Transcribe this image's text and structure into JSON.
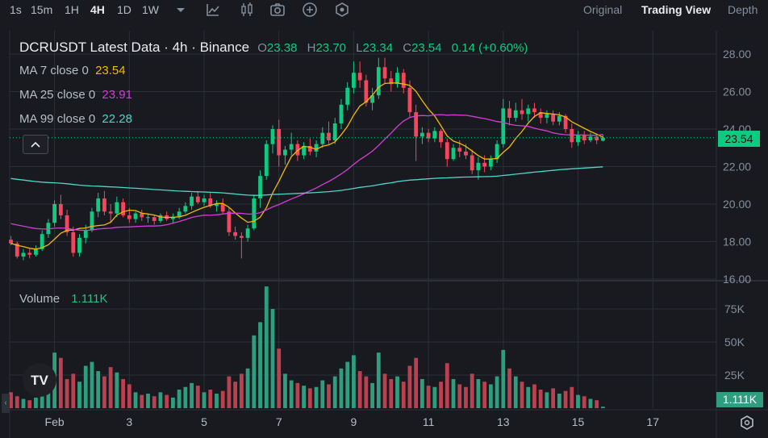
{
  "toolbar": {
    "timeframes": [
      "1s",
      "15m",
      "1H",
      "4H",
      "1D",
      "1W"
    ],
    "active_timeframe": "4H",
    "views": [
      "Original",
      "Trading View",
      "Depth"
    ],
    "active_view": "Trading View"
  },
  "legend": {
    "symbol": "DCRUSDT Latest Data · 4h · Binance",
    "open_label": "O",
    "open": "23.38",
    "high_label": "H",
    "high": "23.70",
    "low_label": "L",
    "low": "23.34",
    "close_label": "C",
    "close": "23.54",
    "change": "0.14 (+0.60%)",
    "ma7_label": "MA 7 close 0",
    "ma7_value": "23.54",
    "ma25_label": "MA 25 close 0",
    "ma25_value": "23.91",
    "ma99_label": "MA 99 close 0",
    "ma99_value": "22.28",
    "volume_label": "Volume",
    "volume_value": "1.111K"
  },
  "badges": {
    "last_price": "23.54",
    "last_volume": "1.111K"
  },
  "colors": {
    "up": "#0ecb81",
    "down": "#f6465d",
    "ma7": "#f0b90b",
    "ma25": "#d23fd2",
    "ma99": "#50d6c8",
    "vol_up": "#2f9e7e",
    "vol_down": "#b94150"
  },
  "chart_data": {
    "type": "candlestick",
    "symbol": "DCRUSDT",
    "interval": "4h",
    "exchange": "Binance",
    "price_axis": {
      "ticks": [
        "28.00",
        "26.00",
        "24.00",
        "22.00",
        "20.00",
        "18.00",
        "16.00"
      ],
      "range": [
        16,
        29
      ]
    },
    "volume_axis": {
      "ticks": [
        "75K",
        "50K",
        "25K"
      ],
      "range": [
        0,
        100000
      ]
    },
    "time_axis": {
      "ticks": [
        {
          "label": "Feb",
          "day": 1
        },
        {
          "label": "3",
          "day": 3
        },
        {
          "label": "5",
          "day": 5
        },
        {
          "label": "7",
          "day": 7
        },
        {
          "label": "9",
          "day": 9
        },
        {
          "label": "11",
          "day": 11
        },
        {
          "label": "13",
          "day": 13
        },
        {
          "label": "15",
          "day": 15
        },
        {
          "label": "17",
          "day": 17
        }
      ],
      "start_day": -0.2,
      "end_day": 18.7
    },
    "last_price": 23.54,
    "candles_start_day": -0.1667,
    "candles_interval_days": 0.16667,
    "candles_note_fields": [
      "o",
      "h",
      "l",
      "c",
      "v"
    ],
    "candles": [
      [
        18.1,
        18.3,
        17.8,
        17.9,
        12000
      ],
      [
        17.9,
        18.0,
        17.1,
        17.2,
        9000
      ],
      [
        17.2,
        17.6,
        17.0,
        17.4,
        7000
      ],
      [
        17.4,
        17.6,
        17.1,
        17.3,
        6000
      ],
      [
        17.3,
        17.8,
        17.2,
        17.6,
        8000
      ],
      [
        17.6,
        18.6,
        17.5,
        18.4,
        15000
      ],
      [
        18.4,
        19.2,
        18.2,
        19.0,
        30000
      ],
      [
        19.0,
        20.2,
        18.8,
        20.0,
        42000
      ],
      [
        20.0,
        20.5,
        19.2,
        19.4,
        38000
      ],
      [
        19.4,
        19.7,
        18.3,
        18.5,
        22000
      ],
      [
        18.5,
        18.8,
        17.2,
        17.4,
        26000
      ],
      [
        17.4,
        18.4,
        17.2,
        18.2,
        20000
      ],
      [
        18.2,
        18.9,
        17.9,
        18.6,
        32000
      ],
      [
        18.6,
        19.8,
        18.5,
        19.6,
        35000
      ],
      [
        19.6,
        20.6,
        19.3,
        20.3,
        28000
      ],
      [
        20.3,
        20.7,
        19.4,
        19.6,
        24000
      ],
      [
        19.6,
        20.0,
        19.0,
        19.5,
        31000
      ],
      [
        19.5,
        20.4,
        19.3,
        20.1,
        27000
      ],
      [
        20.1,
        20.3,
        19.3,
        19.4,
        22000
      ],
      [
        19.4,
        19.8,
        19.0,
        19.2,
        18000
      ],
      [
        19.2,
        19.6,
        19.0,
        19.5,
        12000
      ],
      [
        19.5,
        19.7,
        19.1,
        19.3,
        10000
      ],
      [
        19.3,
        19.5,
        19.0,
        19.3,
        11000
      ],
      [
        19.3,
        19.4,
        18.9,
        19.1,
        9000
      ],
      [
        19.1,
        19.5,
        19.0,
        19.4,
        12000
      ],
      [
        19.4,
        19.6,
        19.1,
        19.2,
        10000
      ],
      [
        19.2,
        19.5,
        19.0,
        19.3,
        8000
      ],
      [
        19.3,
        19.8,
        19.2,
        19.6,
        14000
      ],
      [
        19.6,
        20.1,
        19.5,
        19.9,
        16000
      ],
      [
        19.9,
        20.6,
        19.7,
        20.4,
        19000
      ],
      [
        20.4,
        20.7,
        20.0,
        20.1,
        17000
      ],
      [
        20.1,
        20.5,
        19.9,
        20.3,
        12000
      ],
      [
        20.3,
        20.6,
        19.8,
        19.9,
        14000
      ],
      [
        19.9,
        20.2,
        19.6,
        20.0,
        11000
      ],
      [
        20.0,
        20.3,
        19.5,
        19.6,
        13000
      ],
      [
        19.6,
        19.8,
        18.3,
        18.5,
        24000
      ],
      [
        18.5,
        18.8,
        18.1,
        18.3,
        20000
      ],
      [
        18.3,
        18.5,
        17.1,
        18.2,
        26000
      ],
      [
        18.2,
        18.9,
        18.0,
        18.7,
        30000
      ],
      [
        18.7,
        20.5,
        18.6,
        20.3,
        55000
      ],
      [
        20.3,
        21.8,
        19.8,
        21.5,
        65000
      ],
      [
        21.5,
        23.4,
        21.3,
        23.2,
        92000
      ],
      [
        23.2,
        24.2,
        22.7,
        24.0,
        75000
      ],
      [
        24.0,
        24.5,
        22.0,
        22.6,
        45000
      ],
      [
        22.6,
        23.1,
        22.1,
        22.9,
        26000
      ],
      [
        22.9,
        23.8,
        22.6,
        23.2,
        21000
      ],
      [
        23.2,
        23.4,
        22.3,
        22.6,
        19000
      ],
      [
        22.6,
        23.3,
        22.4,
        23.1,
        17000
      ],
      [
        23.1,
        23.5,
        22.6,
        22.8,
        15000
      ],
      [
        22.8,
        23.4,
        22.5,
        23.2,
        16000
      ],
      [
        23.2,
        24.1,
        23.0,
        23.8,
        21000
      ],
      [
        23.8,
        24.4,
        23.2,
        23.4,
        18000
      ],
      [
        23.4,
        24.6,
        23.2,
        24.3,
        24000
      ],
      [
        24.3,
        25.6,
        24.0,
        25.3,
        30000
      ],
      [
        25.3,
        26.5,
        25.0,
        26.2,
        35000
      ],
      [
        26.2,
        27.6,
        25.9,
        27.0,
        40000
      ],
      [
        27.0,
        27.6,
        26.2,
        26.6,
        28000
      ],
      [
        26.6,
        26.9,
        25.2,
        25.4,
        24000
      ],
      [
        25.4,
        26.2,
        25.0,
        25.8,
        19000
      ],
      [
        25.8,
        27.8,
        25.6,
        27.3,
        42000
      ],
      [
        27.3,
        27.8,
        26.4,
        26.7,
        26000
      ],
      [
        26.7,
        27.1,
        26.0,
        26.4,
        22000
      ],
      [
        26.4,
        27.3,
        26.2,
        27.0,
        24000
      ],
      [
        27.0,
        27.2,
        25.9,
        26.2,
        20000
      ],
      [
        26.2,
        26.6,
        24.6,
        24.9,
        32000
      ],
      [
        24.9,
        25.3,
        22.3,
        23.6,
        38000
      ],
      [
        23.6,
        24.1,
        23.2,
        23.8,
        22000
      ],
      [
        23.8,
        24.0,
        23.3,
        23.5,
        17000
      ],
      [
        23.5,
        24.1,
        23.3,
        23.9,
        16000
      ],
      [
        23.9,
        24.0,
        23.0,
        23.3,
        20000
      ],
      [
        23.3,
        23.5,
        22.0,
        22.4,
        34000
      ],
      [
        22.4,
        23.2,
        22.3,
        23.0,
        22000
      ],
      [
        23.0,
        23.4,
        22.5,
        22.8,
        18000
      ],
      [
        22.8,
        23.2,
        22.4,
        22.6,
        16000
      ],
      [
        22.6,
        22.9,
        21.6,
        21.8,
        26000
      ],
      [
        21.8,
        22.5,
        21.3,
        22.2,
        22000
      ],
      [
        22.2,
        22.6,
        21.7,
        22.0,
        20000
      ],
      [
        22.0,
        22.6,
        21.8,
        22.4,
        18000
      ],
      [
        22.4,
        23.4,
        22.2,
        23.2,
        24000
      ],
      [
        23.2,
        25.6,
        23.0,
        25.1,
        44000
      ],
      [
        25.1,
        25.5,
        24.2,
        24.6,
        30000
      ],
      [
        24.6,
        25.4,
        24.4,
        25.0,
        24000
      ],
      [
        25.0,
        25.6,
        24.5,
        24.8,
        20000
      ],
      [
        24.8,
        25.3,
        24.4,
        25.1,
        16000
      ],
      [
        25.1,
        25.4,
        24.6,
        24.9,
        18000
      ],
      [
        24.9,
        25.1,
        24.3,
        24.6,
        14000
      ],
      [
        24.6,
        25.0,
        24.3,
        24.8,
        12000
      ],
      [
        24.8,
        25.0,
        24.2,
        24.4,
        15000
      ],
      [
        24.4,
        24.9,
        24.2,
        24.7,
        11000
      ],
      [
        24.7,
        24.8,
        23.8,
        24.0,
        13000
      ],
      [
        24.0,
        24.3,
        23.0,
        23.3,
        16000
      ],
      [
        23.3,
        23.9,
        23.1,
        23.7,
        10000
      ],
      [
        23.7,
        23.9,
        23.2,
        23.4,
        9000
      ],
      [
        23.4,
        23.8,
        23.3,
        23.6,
        7000
      ],
      [
        23.6,
        23.7,
        23.2,
        23.4,
        6000
      ],
      [
        23.38,
        23.7,
        23.34,
        23.54,
        1111
      ]
    ]
  }
}
